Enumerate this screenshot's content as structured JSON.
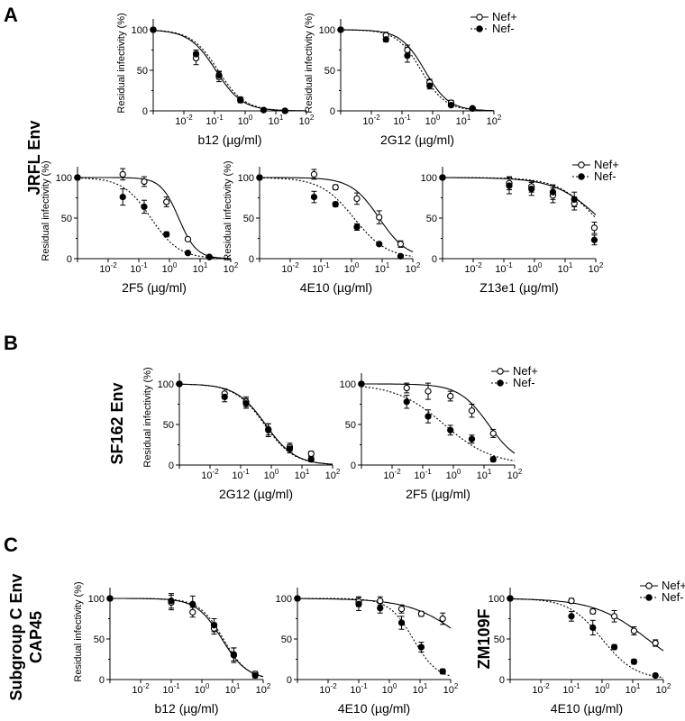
{
  "figure": {
    "panel_letters": [
      "A",
      "B",
      "C"
    ],
    "row_labels": {
      "A": [
        "JRFL Env"
      ],
      "B": [
        "SF162 Env"
      ],
      "C": [
        "Subgroup C Env",
        "CAP45"
      ]
    },
    "legend": {
      "open_label": "Nef+",
      "filled_label": "Nef-"
    },
    "ylabel": "Residual infectivity (%)"
  },
  "chart_data": [
    {
      "id": "A1",
      "type": "line",
      "xlabel": "b12 (µg/ml)",
      "ylabel": "Residual infectivity (%)",
      "xscale": "log",
      "xlim": [
        0.001,
        100
      ],
      "ylim": [
        0,
        100
      ],
      "legend": false,
      "series": [
        {
          "name": "Nef+",
          "marker": "open",
          "curve": "solid",
          "x": [
            0.001,
            0.025,
            0.14,
            0.7,
            4,
            20
          ],
          "y": [
            100,
            65,
            42,
            13,
            1,
            0
          ],
          "err": [
            2,
            8,
            6,
            3,
            1,
            1
          ],
          "ic50": 0.11,
          "hill": 1.0
        },
        {
          "name": "Nef-",
          "marker": "filled",
          "curve": "dotted",
          "x": [
            0.001,
            0.025,
            0.14,
            0.7,
            4,
            20
          ],
          "y": [
            100,
            70,
            44,
            14,
            1,
            0
          ],
          "err": [
            2,
            5,
            5,
            3,
            1,
            1
          ],
          "ic50": 0.13,
          "hill": 1.0
        }
      ]
    },
    {
      "id": "A2",
      "type": "line",
      "xlabel": "2G12 (µg/ml)",
      "ylabel": "Residual infectivity (%)",
      "xscale": "log",
      "xlim": [
        0.001,
        100
      ],
      "ylim": [
        0,
        100
      ],
      "legend": true,
      "series": [
        {
          "name": "Nef+",
          "marker": "open",
          "curve": "solid",
          "x": [
            0.001,
            0.03,
            0.15,
            0.8,
            4,
            20
          ],
          "y": [
            100,
            93,
            75,
            35,
            10,
            3
          ],
          "err": [
            2,
            4,
            6,
            4,
            3,
            1
          ],
          "ic50": 0.55,
          "hill": 1.1
        },
        {
          "name": "Nef-",
          "marker": "filled",
          "curve": "dotted",
          "x": [
            0.001,
            0.03,
            0.15,
            0.8,
            4,
            20
          ],
          "y": [
            100,
            88,
            68,
            31,
            7,
            3
          ],
          "err": [
            2,
            3,
            8,
            4,
            2,
            1
          ],
          "ic50": 0.42,
          "hill": 1.1
        }
      ]
    },
    {
      "id": "A3",
      "type": "line",
      "xlabel": "2F5 (µg/ml)",
      "ylabel": "Residual infectivity (%)",
      "xscale": "log",
      "xlim": [
        0.001,
        100
      ],
      "ylim": [
        0,
        100
      ],
      "legend": false,
      "series": [
        {
          "name": "Nef+",
          "marker": "open",
          "curve": "solid",
          "x": [
            0.001,
            0.03,
            0.15,
            0.8,
            4,
            20
          ],
          "y": [
            100,
            104,
            95,
            70,
            24,
            2
          ],
          "err": [
            2,
            7,
            6,
            6,
            2,
            1
          ],
          "ic50": 2.0,
          "hill": 1.5
        },
        {
          "name": "Nef-",
          "marker": "filled",
          "curve": "dotted",
          "x": [
            0.001,
            0.03,
            0.15,
            0.8,
            4,
            20
          ],
          "y": [
            100,
            76,
            64,
            30,
            7,
            2
          ],
          "err": [
            2,
            10,
            8,
            3,
            2,
            1
          ],
          "ic50": 0.25,
          "hill": 0.95
        }
      ]
    },
    {
      "id": "A4",
      "type": "line",
      "xlabel": "4E10 (µg/ml)",
      "ylabel": "Residual infectivity (%)",
      "xscale": "log",
      "xlim": [
        0.001,
        100
      ],
      "ylim": [
        0,
        100
      ],
      "legend": false,
      "series": [
        {
          "name": "Nef+",
          "marker": "open",
          "curve": "solid",
          "x": [
            0.001,
            0.06,
            0.3,
            1.5,
            8,
            40
          ],
          "y": [
            100,
            104,
            88,
            74,
            51,
            18
          ],
          "err": [
            2,
            6,
            3,
            7,
            8,
            4
          ],
          "ic50": 8.0,
          "hill": 0.95
        },
        {
          "name": "Nef-",
          "marker": "filled",
          "curve": "dotted",
          "x": [
            0.001,
            0.06,
            0.3,
            1.5,
            8,
            40
          ],
          "y": [
            100,
            76,
            67,
            39,
            18,
            3
          ],
          "err": [
            2,
            7,
            3,
            4,
            2,
            1
          ],
          "ic50": 1.2,
          "hill": 0.8
        }
      ]
    },
    {
      "id": "A5",
      "type": "line",
      "xlabel": "Z13e1 (µg/ml)",
      "ylabel": "",
      "xscale": "log",
      "xlim": [
        0.001,
        100
      ],
      "ylim": [
        0,
        100
      ],
      "legend": true,
      "series": [
        {
          "name": "Nef+",
          "marker": "open",
          "curve": "solid",
          "x": [
            0.001,
            0.15,
            0.8,
            4,
            20,
            90
          ],
          "y": [
            100,
            93,
            89,
            78,
            68,
            38
          ],
          "err": [
            2,
            8,
            7,
            9,
            8,
            7
          ],
          "ic50": 130,
          "hill": 0.6
        },
        {
          "name": "Nef-",
          "marker": "filled",
          "curve": "dotted",
          "x": [
            0.001,
            0.15,
            0.8,
            4,
            20,
            90
          ],
          "y": [
            100,
            90,
            86,
            82,
            73,
            23
          ],
          "err": [
            2,
            10,
            8,
            9,
            9,
            6
          ],
          "ic50": 100,
          "hill": 0.7
        }
      ]
    },
    {
      "id": "B1",
      "type": "line",
      "xlabel": "2G12 (µg/ml)",
      "ylabel": "Residual infectivity (%)",
      "xscale": "log",
      "xlim": [
        0.001,
        100
      ],
      "ylim": [
        0,
        100
      ],
      "legend": false,
      "series": [
        {
          "name": "Nef+",
          "marker": "open",
          "curve": "solid",
          "x": [
            0.001,
            0.03,
            0.15,
            0.8,
            4,
            20
          ],
          "y": [
            100,
            88,
            78,
            44,
            22,
            14
          ],
          "err": [
            2,
            6,
            6,
            7,
            5,
            3
          ],
          "ic50": 0.65,
          "hill": 0.9
        },
        {
          "name": "Nef-",
          "marker": "filled",
          "curve": "dotted",
          "x": [
            0.001,
            0.03,
            0.15,
            0.8,
            4,
            20
          ],
          "y": [
            100,
            84,
            76,
            43,
            20,
            7
          ],
          "err": [
            2,
            6,
            6,
            8,
            5,
            3
          ],
          "ic50": 0.6,
          "hill": 0.9
        }
      ]
    },
    {
      "id": "B2",
      "type": "line",
      "xlabel": "2F5 (µg/ml)",
      "ylabel": "",
      "xscale": "log",
      "xlim": [
        0.001,
        100
      ],
      "ylim": [
        0,
        100
      ],
      "legend": true,
      "series": [
        {
          "name": "Nef+",
          "marker": "open",
          "curve": "solid",
          "x": [
            0.001,
            0.03,
            0.15,
            0.8,
            4,
            20
          ],
          "y": [
            100,
            95,
            91,
            85,
            67,
            39
          ],
          "err": [
            2,
            6,
            10,
            6,
            8,
            5
          ],
          "ic50": 14,
          "hill": 0.9
        },
        {
          "name": "Nef-",
          "marker": "filled",
          "curve": "dotted",
          "x": [
            0.001,
            0.03,
            0.15,
            0.8,
            4,
            20
          ],
          "y": [
            100,
            78,
            60,
            43,
            32,
            7
          ],
          "err": [
            2,
            8,
            8,
            6,
            5,
            3
          ],
          "ic50": 0.5,
          "hill": 0.55
        }
      ]
    },
    {
      "id": "C1",
      "type": "line",
      "xlabel": "b12 (µg/ml)",
      "ylabel": "Residual infectivity (%)",
      "xscale": "log",
      "xlim": [
        0.001,
        100
      ],
      "ylim": [
        0,
        100
      ],
      "legend": false,
      "series": [
        {
          "name": "Nef+",
          "marker": "open",
          "curve": "solid",
          "x": [
            0.001,
            0.1,
            0.5,
            2.5,
            11,
            55
          ],
          "y": [
            100,
            95,
            83,
            63,
            30,
            7
          ],
          "err": [
            2,
            9,
            6,
            7,
            9,
            3
          ],
          "ic50": 4.5,
          "hill": 1.05
        },
        {
          "name": "Nef-",
          "marker": "filled",
          "curve": "dotted",
          "x": [
            0.001,
            0.1,
            0.5,
            2.5,
            11,
            55
          ],
          "y": [
            100,
            97,
            93,
            67,
            31,
            5
          ],
          "err": [
            2,
            9,
            10,
            8,
            8,
            3
          ],
          "ic50": 5.0,
          "hill": 1.1
        }
      ]
    },
    {
      "id": "C2",
      "type": "line",
      "xlabel": "4E10 (µg/ml)",
      "ylabel": "",
      "xscale": "log",
      "xlim": [
        0.001,
        100
      ],
      "ylim": [
        0,
        100
      ],
      "legend": false,
      "series": [
        {
          "name": "Nef+",
          "marker": "open",
          "curve": "solid",
          "x": [
            0.001,
            0.1,
            0.5,
            2.5,
            11,
            55
          ],
          "y": [
            100,
            96,
            97,
            87,
            81,
            75
          ],
          "err": [
            2,
            6,
            5,
            5,
            3,
            7
          ],
          "ic50": 300,
          "hill": 0.5
        },
        {
          "name": "Nef-",
          "marker": "filled",
          "curve": "dotted",
          "x": [
            0.001,
            0.1,
            0.5,
            2.5,
            11,
            55
          ],
          "y": [
            100,
            93,
            88,
            70,
            40,
            10
          ],
          "err": [
            2,
            8,
            6,
            8,
            6,
            3
          ],
          "ic50": 6.0,
          "hill": 1.1
        }
      ]
    },
    {
      "id": "C3",
      "type": "line",
      "xlabel": "4E10 (µg/ml)",
      "ylabel": "",
      "title": "ZM109F",
      "xscale": "log",
      "xlim": [
        0.001,
        100
      ],
      "ylim": [
        0,
        100
      ],
      "legend": true,
      "series": [
        {
          "name": "Nef+",
          "marker": "open",
          "curve": "solid",
          "x": [
            0.001,
            0.1,
            0.5,
            2.5,
            11,
            55
          ],
          "y": [
            100,
            97,
            84,
            78,
            60,
            45
          ],
          "err": [
            2,
            3,
            3,
            7,
            5,
            4
          ],
          "ic50": 30,
          "hill": 0.5
        },
        {
          "name": "Nef-",
          "marker": "filled",
          "curve": "dotted",
          "x": [
            0.001,
            0.1,
            0.5,
            2.5,
            11,
            55
          ],
          "y": [
            100,
            78,
            64,
            40,
            22,
            5
          ],
          "err": [
            2,
            6,
            9,
            3,
            3,
            1
          ],
          "ic50": 1.0,
          "hill": 0.8
        }
      ]
    }
  ]
}
